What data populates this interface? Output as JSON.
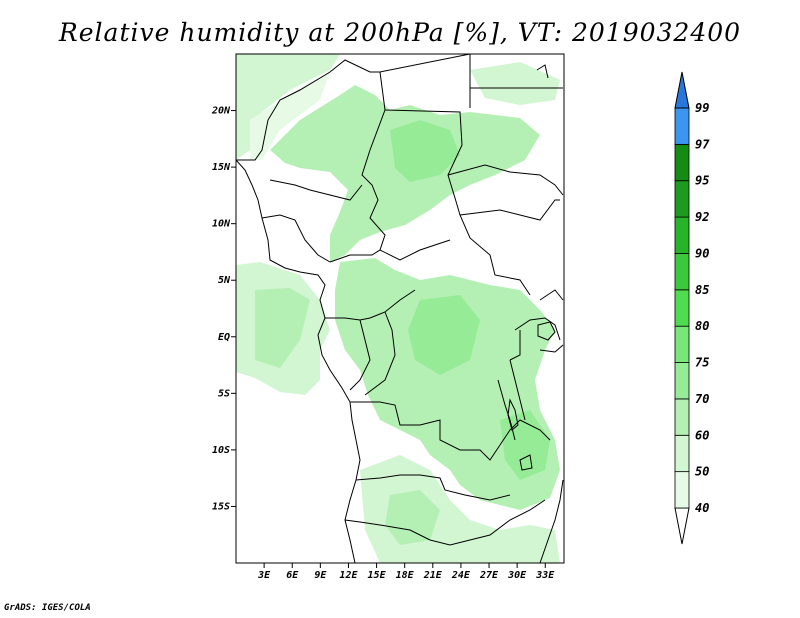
{
  "title": "Relative humidity at 200hPa [%], VT: 2019032400",
  "footer": "GrADS: IGES/COLA",
  "map": {
    "lon_range": [
      0,
      35
    ],
    "lat_range": [
      -20,
      25
    ],
    "lat_ticks": [
      {
        "value": 20,
        "label": "20N"
      },
      {
        "value": 15,
        "label": "15N"
      },
      {
        "value": 10,
        "label": "10N"
      },
      {
        "value": 5,
        "label": "5N"
      },
      {
        "value": 0,
        "label": "EQ"
      },
      {
        "value": -5,
        "label": "5S"
      },
      {
        "value": -10,
        "label": "10S"
      },
      {
        "value": -15,
        "label": "15S"
      }
    ],
    "lon_ticks": [
      {
        "value": 3,
        "label": "3E"
      },
      {
        "value": 6,
        "label": "6E"
      },
      {
        "value": 9,
        "label": "9E"
      },
      {
        "value": 12,
        "label": "12E"
      },
      {
        "value": 15,
        "label": "15E"
      },
      {
        "value": 18,
        "label": "18E"
      },
      {
        "value": 21,
        "label": "21E"
      },
      {
        "value": 24,
        "label": "24E"
      },
      {
        "value": 27,
        "label": "27E"
      },
      {
        "value": 30,
        "label": "30E"
      },
      {
        "value": 33,
        "label": "33E"
      }
    ]
  },
  "colorbar": {
    "levels": [
      {
        "label": "40",
        "color": "#e6fae6"
      },
      {
        "label": "50",
        "color": "#d2f5d2"
      },
      {
        "label": "60",
        "color": "#b4f0b4"
      },
      {
        "label": "70",
        "color": "#96eb96"
      },
      {
        "label": "75",
        "color": "#78e678"
      },
      {
        "label": "80",
        "color": "#50dc50"
      },
      {
        "label": "85",
        "color": "#3cc83c"
      },
      {
        "label": "90",
        "color": "#28b428"
      },
      {
        "label": "92",
        "color": "#1e9b1e"
      },
      {
        "label": "95",
        "color": "#148c14"
      },
      {
        "label": "97",
        "color": "#3c96f0"
      },
      {
        "label": "99",
        "color": "#2878dc"
      }
    ],
    "below_color": "#ffffff",
    "above_color": "#1e5ac8"
  }
}
